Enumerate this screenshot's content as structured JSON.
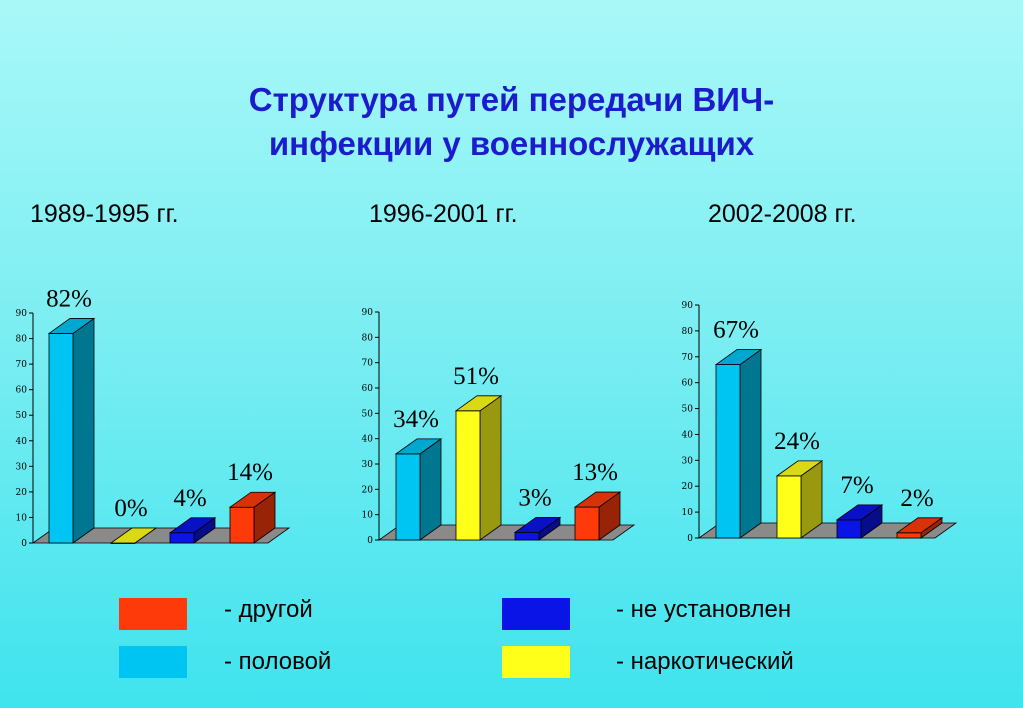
{
  "title_line1": "Структура путей передачи ВИЧ-",
  "title_line2": "инфекции у военнослужащих",
  "colors": {
    "половой": "#00c4f2",
    "наркотический": "#ffff1a",
    "не установлен": "#0a14e6",
    "другой": "#ff3a0a",
    "floor": "#8a8a8a"
  },
  "legend": [
    {
      "label": "- другой",
      "series": "другой"
    },
    {
      "label": "- не установлен",
      "series": "не установлен"
    },
    {
      "label": "- половой",
      "series": "половой"
    },
    {
      "label": "- наркотический",
      "series": "наркотический"
    }
  ],
  "chart_data": [
    {
      "type": "bar",
      "title": "1989-1995 гг.",
      "categories": [
        "половой",
        "наркотический",
        "не установлен",
        "другой"
      ],
      "values": [
        82,
        0,
        4,
        14
      ],
      "data_labels": [
        "82%",
        "0%",
        "4%",
        "14%"
      ],
      "ylim": [
        0,
        90
      ],
      "yticks": [
        0,
        10,
        20,
        30,
        40,
        50,
        60,
        70,
        80,
        90
      ],
      "grid": false
    },
    {
      "type": "bar",
      "title": "1996-2001 гг.",
      "categories": [
        "половой",
        "наркотический",
        "не установлен",
        "другой"
      ],
      "values": [
        34,
        51,
        3,
        13
      ],
      "data_labels": [
        "34%",
        "51%",
        "3%",
        "13%"
      ],
      "ylim": [
        0,
        90
      ],
      "yticks": [
        0,
        10,
        20,
        30,
        40,
        50,
        60,
        70,
        80,
        90
      ],
      "grid": false
    },
    {
      "type": "bar",
      "title": "2002-2008 гг.",
      "categories": [
        "половой",
        "наркотический",
        "не установлен",
        "другой"
      ],
      "values": [
        67,
        24,
        7,
        2
      ],
      "data_labels": [
        "67%",
        "24%",
        "7%",
        "2%"
      ],
      "ylim": [
        0,
        90
      ],
      "yticks": [
        0,
        10,
        20,
        30,
        40,
        50,
        60,
        70,
        80,
        90
      ],
      "grid": false
    }
  ]
}
